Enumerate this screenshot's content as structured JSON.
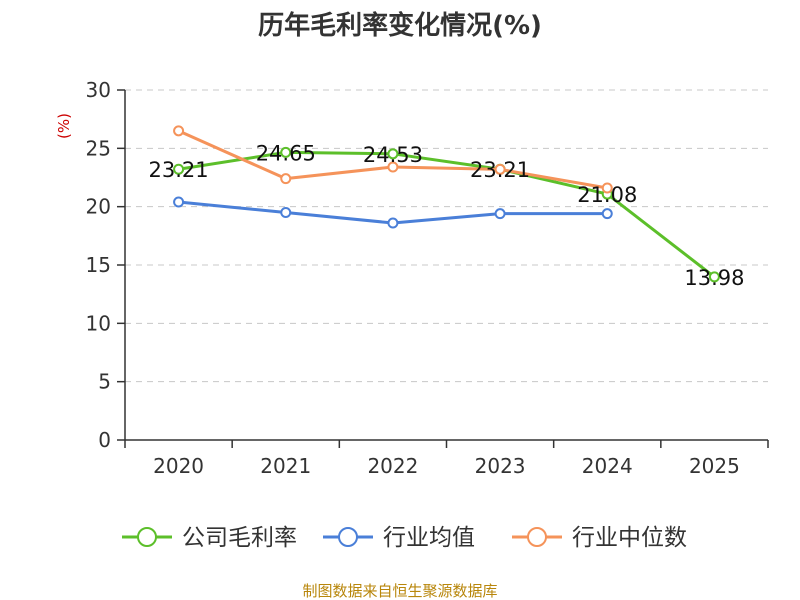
{
  "chart_data": {
    "type": "line",
    "title": "历年毛利率变化情况(%)",
    "unit_label": "(%)",
    "categories": [
      "2020",
      "2021",
      "2022",
      "2023",
      "2024",
      "2025"
    ],
    "ylim": [
      0,
      30
    ],
    "yticks": [
      0,
      5,
      10,
      15,
      20,
      25,
      30
    ],
    "grid": true,
    "legend_position": "bottom",
    "series": [
      {
        "name": "公司毛利率",
        "color": "#5cbf2a",
        "values": [
          23.21,
          24.65,
          24.53,
          23.21,
          21.08,
          13.98
        ],
        "labels": [
          "23.21",
          "24.65",
          "24.53",
          "23.21",
          "21.08",
          "13.98"
        ]
      },
      {
        "name": "行业均值",
        "color": "#4a7fd8",
        "values": [
          20.4,
          19.5,
          18.6,
          19.4,
          19.4,
          null
        ],
        "labels": []
      },
      {
        "name": "行业中位数",
        "color": "#f5935a",
        "values": [
          26.5,
          22.4,
          23.4,
          23.2,
          21.6,
          null
        ],
        "labels": []
      }
    ],
    "source": "制图数据来自恒生聚源数据库"
  }
}
